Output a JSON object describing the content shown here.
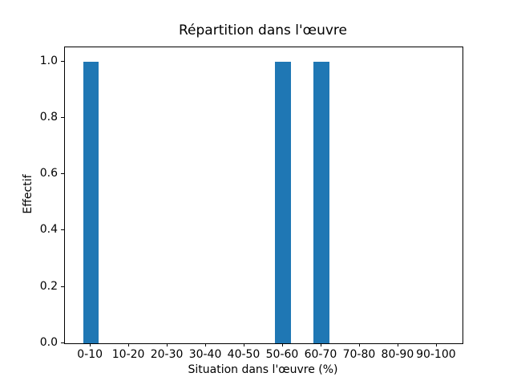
{
  "chart_data": {
    "type": "bar",
    "title": "Répartition dans l'œuvre",
    "xlabel": "Situation dans l'œuvre (%)",
    "ylabel": "Effectif",
    "categories": [
      "0-10",
      "10-20",
      "20-30",
      "30-40",
      "40-50",
      "50-60",
      "60-70",
      "70-80",
      "80-90",
      "90-100"
    ],
    "values": [
      1,
      0,
      0,
      0,
      0,
      1,
      1,
      0,
      0,
      0
    ],
    "ytick_values": [
      0.0,
      0.2,
      0.4,
      0.6,
      0.8,
      1.0
    ],
    "ytick_labels": [
      "0.0",
      "0.2",
      "0.4",
      "0.6",
      "0.8",
      "1.0"
    ],
    "xlim": [
      -0.67,
      9.67
    ],
    "ylim": [
      0,
      1.05
    ],
    "bar_width": 0.4,
    "bar_color": "#1f77b4",
    "grid": false,
    "legend_position": null
  }
}
